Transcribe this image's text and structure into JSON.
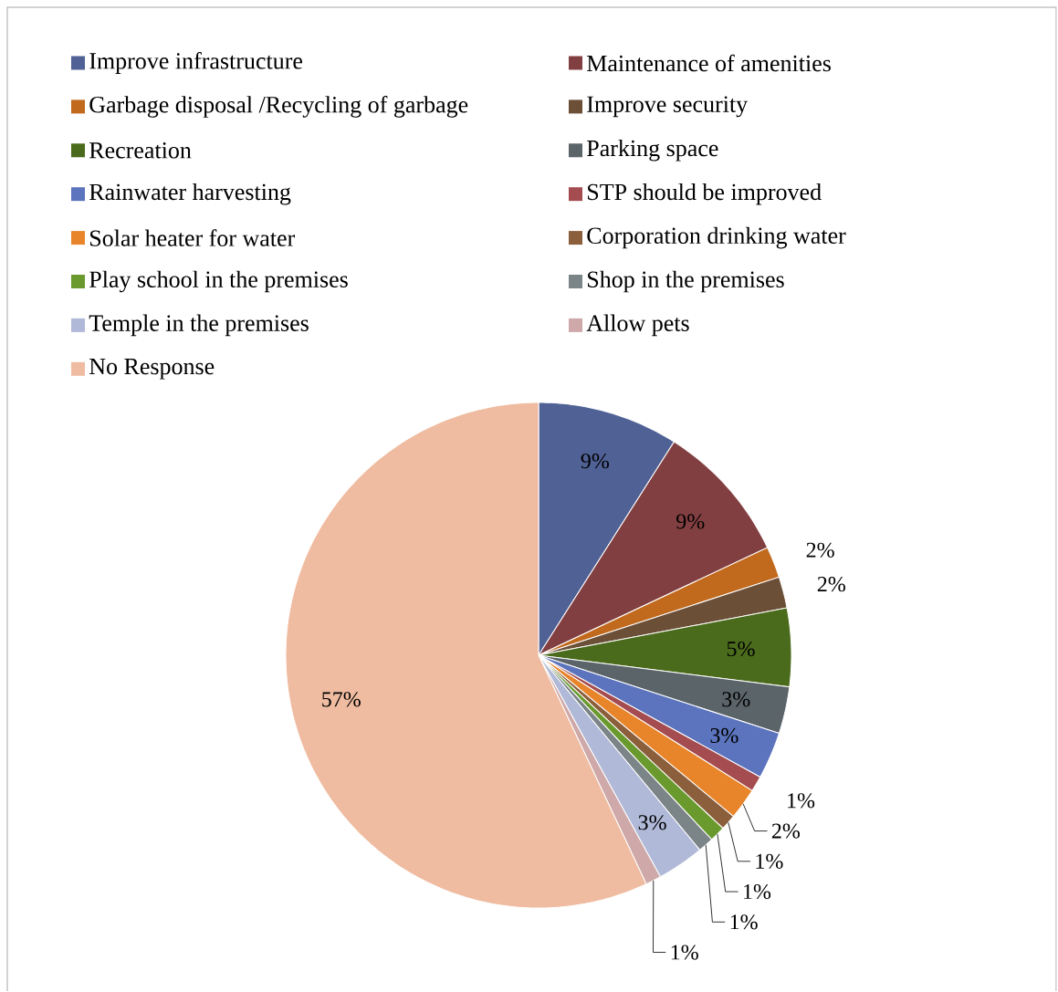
{
  "chart_data": {
    "type": "pie",
    "categories": [
      "Improve infrastructure",
      "Maintenance of amenities",
      "Garbage disposal /Recycling of garbage",
      "Improve security",
      "Recreation",
      "Parking space",
      "Rainwater harvesting",
      "STP should be improved",
      "Solar heater for water",
      "Corporation drinking water",
      "Play school in the premises",
      "Shop in the premises",
      "Temple in the premises",
      "Allow pets",
      "No Response"
    ],
    "values": [
      9,
      9,
      2,
      2,
      5,
      3,
      3,
      1,
      2,
      1,
      1,
      1,
      3,
      1,
      57
    ],
    "value_labels": [
      "9%",
      "9%",
      "2%",
      "2%",
      "5%",
      "3%",
      "3%",
      "1%",
      "2%",
      "1%",
      "1%",
      "1%",
      "3%",
      "1%",
      "57%"
    ],
    "colors": [
      "#4f6195",
      "#823f41",
      "#c1691c",
      "#6b4f37",
      "#4b6b1c",
      "#5b6469",
      "#5b74bd",
      "#a44c4f",
      "#e8852a",
      "#8b5e3c",
      "#6a9a2d",
      "#7b8487",
      "#b0b9d7",
      "#cfa9a9",
      "#efbca1"
    ],
    "legend": "top"
  }
}
